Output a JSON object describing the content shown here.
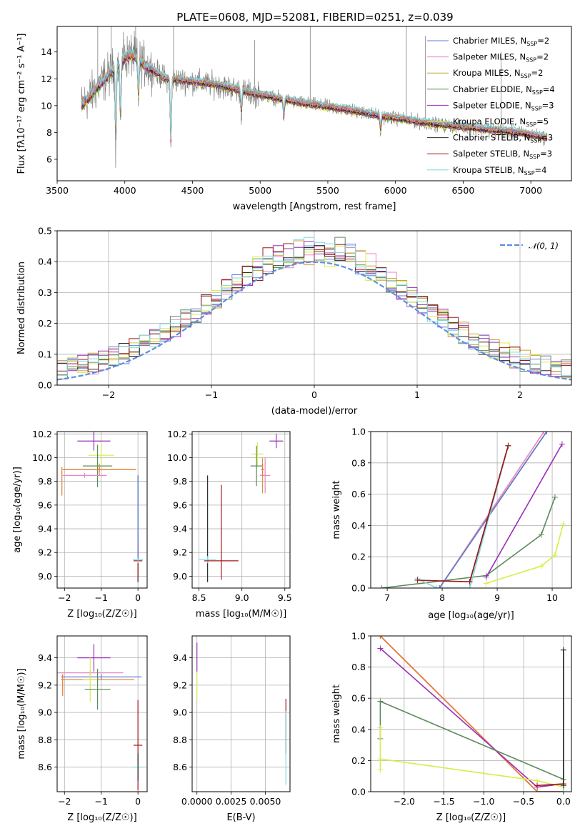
{
  "figure": {
    "title": "PLATE=0608, MJD=52081, FIBERID=0251, z=0.039"
  },
  "colors": {
    "Chabrier MILES": "#5b7fd6",
    "Salpeter MILES": "#e884c6",
    "Kroupa MILES": "#c8a03a",
    "Chabrier ELODIE": "#5c8a5c",
    "Salpeter ELODIE": "#9a30b8",
    "Kroupa ELODIE": "#d8ec4a",
    "Chabrier STELIB": "#2a2a2a",
    "Salpeter STELIB": "#a01818",
    "Kroupa STELIB": "#7fd8dc",
    "data": "#808080",
    "orange": "#e87830"
  },
  "chart_data": [
    {
      "id": "spectrum",
      "type": "line",
      "title": "PLATE=0608, MJD=52081, FIBERID=0251, z=0.039",
      "xlabel": "wavelength [Angstrom, rest frame]",
      "ylabel": "Flux [fλ10⁻¹⁷ erg cm⁻² s⁻¹ A⁻¹]",
      "xlim": [
        3500,
        7300
      ],
      "ylim": [
        4.4,
        15.9
      ],
      "xticks": [
        3500,
        4000,
        4500,
        5000,
        5500,
        6000,
        6500,
        7000
      ],
      "yticks": [
        6,
        8,
        10,
        12,
        14
      ],
      "grid": false,
      "legend_position": "top-right",
      "legend": [
        {
          "label": "Chabrier MILES, N",
          "sub": "SSP",
          "rest": "=2"
        },
        {
          "label": "Salpeter MILES, N",
          "sub": "SSP",
          "rest": "=2"
        },
        {
          "label": "Kroupa MILES, N",
          "sub": "SSP",
          "rest": "=2"
        },
        {
          "label": "Chabrier ELODIE, N",
          "sub": "SSP",
          "rest": "=4"
        },
        {
          "label": "Salpeter ELODIE, N",
          "sub": "SSP",
          "rest": "=3"
        },
        {
          "label": "Kroupa ELODIE, N",
          "sub": "SSP",
          "rest": "=5"
        },
        {
          "label": "Chabrier STELIB, N",
          "sub": "SSP",
          "rest": "=3"
        },
        {
          "label": "Salpeter STELIB, N",
          "sub": "SSP",
          "rest": "=3"
        },
        {
          "label": "Kroupa STELIB, N",
          "sub": "SSP",
          "rest": "=4"
        }
      ],
      "continuum": {
        "x": [
          3680,
          3750,
          3850,
          3950,
          4000,
          4050,
          4150,
          4300,
          4500,
          4700,
          4900,
          5100,
          5300,
          5500,
          5700,
          5900,
          6100,
          6300,
          6500,
          6700,
          6900,
          7120
        ],
        "y": [
          10.0,
          10.8,
          12.0,
          13.0,
          13.6,
          13.8,
          13.0,
          12.0,
          11.8,
          11.5,
          11.0,
          10.6,
          10.2,
          9.9,
          9.6,
          9.2,
          8.9,
          8.6,
          8.4,
          8.2,
          8.0,
          7.6
        ]
      },
      "absorption_lines": [
        {
          "x": 3933,
          "depth": 5.0
        },
        {
          "x": 3968,
          "depth": 4.2
        },
        {
          "x": 4101,
          "depth": 2.5
        },
        {
          "x": 4340,
          "depth": 4.5
        },
        {
          "x": 4861,
          "depth": 1.5
        },
        {
          "x": 5175,
          "depth": 1.2
        },
        {
          "x": 5890,
          "depth": 1.0
        }
      ],
      "spikes": [
        {
          "x": 3800,
          "top": 15.9
        },
        {
          "x": 3900,
          "top": 15.9
        },
        {
          "x": 3990,
          "top": 15.5
        },
        {
          "x": 4080,
          "top": 15.9
        },
        {
          "x": 4360,
          "top": 15.9
        },
        {
          "x": 4960,
          "top": 14.9
        },
        {
          "x": 5370,
          "top": 15.9
        },
        {
          "x": 6080,
          "top": 15.9
        },
        {
          "x": 6220,
          "top": 15.2
        },
        {
          "x": 6780,
          "top": 14.0
        }
      ]
    },
    {
      "id": "residuals",
      "type": "step",
      "xlabel": "(data-model)/error",
      "ylabel": "Normed distribution",
      "xlim": [
        -2.5,
        2.5
      ],
      "ylim": [
        0,
        0.5
      ],
      "xticks": [
        -2,
        -1,
        0,
        1,
        2
      ],
      "xticklabels": [
        "−2",
        "−1",
        "0",
        "1",
        "2"
      ],
      "yticks": [
        0.0,
        0.1,
        0.2,
        0.3,
        0.4,
        0.5
      ],
      "yticklabels": [
        "0.0",
        "0.1",
        "0.2",
        "0.3",
        "0.4",
        "0.5"
      ],
      "grid": true,
      "legend_position": "top-right",
      "gauss_label": "𝒩(0, 1)",
      "gauss_color": "#5b8fe0",
      "bin_width": 0.1
    },
    {
      "id": "z-age",
      "type": "errorbar",
      "xlabel": "Z [log₁₀(Z/Z☉)]",
      "ylabel": "age  [log₁₀(age/yr)]",
      "xlim": [
        -2.2,
        0.25
      ],
      "ylim": [
        8.9,
        10.22
      ],
      "xticks": [
        -2,
        -1,
        0
      ],
      "xticklabels": [
        "−2",
        "−1",
        "0"
      ],
      "yticks": [
        9.0,
        9.2,
        9.4,
        9.6,
        9.8,
        10.0,
        10.2
      ],
      "yticklabels": [
        "9.0",
        "9.2",
        "9.4",
        "9.6",
        "9.8",
        "10.0",
        "10.2"
      ],
      "grid": true,
      "points": [
        {
          "series": "Salpeter ELODIE",
          "x": -1.2,
          "xerr": 0.45,
          "y": 10.14,
          "yerr": 0.08
        },
        {
          "series": "Kroupa ELODIE",
          "x": -1.0,
          "xerr": 0.35,
          "y": 10.02,
          "yerr": 0.1
        },
        {
          "series": "Chabrier ELODIE",
          "x": -1.1,
          "xerr": 0.4,
          "y": 9.93,
          "yerr": 0.18
        },
        {
          "series": "Kroupa MILES",
          "x": -1.05,
          "xerr": 1.0,
          "y": 9.9,
          "yerr": 0.05
        },
        {
          "series": "orange",
          "x": -1.05,
          "xerr": 1.0,
          "y": 9.9,
          "yerr": 0.02
        },
        {
          "series": "Salpeter MILES",
          "x": -1.45,
          "xerr": 0.6,
          "y": 9.85,
          "yerr": 0.02
        },
        {
          "series": "orange",
          "x": -2.07,
          "xerr": 0.0,
          "y": 9.8,
          "yerr": 0.12
        },
        {
          "series": "Chabrier STELIB",
          "x": 0.0,
          "xerr": 0.0,
          "y": 9.4,
          "yerr": 0.45
        },
        {
          "series": "Salpeter STELIB",
          "x": 0.0,
          "xerr": 0.12,
          "y": 9.13,
          "yerr": 0.15
        },
        {
          "series": "Kroupa STELIB",
          "x": 0.0,
          "xerr": 0.14,
          "y": 9.14,
          "yerr": 0.03
        },
        {
          "series": "Chabrier MILES",
          "x": 0.0,
          "xerr": 0.0,
          "y": 9.5,
          "yerr": 0.35
        }
      ]
    },
    {
      "id": "mass-age",
      "type": "errorbar",
      "xlabel": "mass [log₁₀(M/M☉)]",
      "ylabel": "",
      "xlim": [
        8.42,
        9.56
      ],
      "ylim": [
        8.9,
        10.22
      ],
      "xticks": [
        8.5,
        9.0,
        9.5
      ],
      "xticklabels": [
        "8.5",
        "9.0",
        "9.5"
      ],
      "yticks": [
        9.0,
        9.2,
        9.4,
        9.6,
        9.8,
        10.0,
        10.2
      ],
      "yticklabels": [
        "9.0",
        "9.2",
        "9.4",
        "9.6",
        "9.8",
        "10.0",
        "10.2"
      ],
      "grid": true,
      "points": [
        {
          "series": "Salpeter ELODIE",
          "x": 9.4,
          "xerr": 0.08,
          "y": 10.14,
          "yerr": 0.06
        },
        {
          "series": "Kroupa ELODIE",
          "x": 9.18,
          "xerr": 0.07,
          "y": 10.03,
          "yerr": 0.1
        },
        {
          "series": "Chabrier ELODIE",
          "x": 9.17,
          "xerr": 0.07,
          "y": 9.93,
          "yerr": 0.17
        },
        {
          "series": "Kroupa MILES",
          "x": 9.24,
          "xerr": 0.03,
          "y": 9.85,
          "yerr": 0.15
        },
        {
          "series": "Salpeter MILES",
          "x": 9.27,
          "xerr": 0.06,
          "y": 9.85,
          "yerr": 0.15
        },
        {
          "series": "orange",
          "x": 9.24,
          "xerr": 0.02,
          "y": 9.9,
          "yerr": 0.05
        },
        {
          "series": "Chabrier STELIB",
          "x": 8.6,
          "xerr": 0.0,
          "y": 9.4,
          "yerr": 0.45
        },
        {
          "series": "Kroupa STELIB",
          "x": 8.6,
          "xerr": 0.1,
          "y": 9.14,
          "yerr": 0.03
        },
        {
          "series": "Salpeter STELIB",
          "x": 8.76,
          "xerr": 0.2,
          "y": 9.13,
          "yerr": 0.0
        },
        {
          "series": "Salpeter STELIB",
          "x": 8.76,
          "xerr": 0.0,
          "y": 9.37,
          "yerr": 0.4
        }
      ]
    },
    {
      "id": "age-weight",
      "type": "line",
      "xlabel": "age  [log₁₀(age/yr)]",
      "ylabel": "mass weight",
      "xlim": [
        6.7,
        10.35
      ],
      "ylim": [
        0,
        1
      ],
      "xticks": [
        7,
        8,
        9,
        10
      ],
      "xticklabels": [
        "7",
        "8",
        "9",
        "10"
      ],
      "yticks": [
        0.0,
        0.2,
        0.4,
        0.6,
        0.8,
        1.0
      ],
      "yticklabels": [
        "0.0",
        "0.2",
        "0.4",
        "0.6",
        "0.8",
        "1.0"
      ],
      "grid": true,
      "series": [
        {
          "name": "Chabrier ELODIE",
          "x": [
            6.9,
            8.8,
            9.8,
            10.05
          ],
          "y": [
            0.0,
            0.08,
            0.34,
            0.58
          ]
        },
        {
          "name": "Salpeter ELODIE",
          "x": [
            8.8,
            10.18
          ],
          "y": [
            0.07,
            0.92
          ]
        },
        {
          "name": "Kroupa ELODIE",
          "x": [
            8.8,
            9.8,
            10.05,
            10.2
          ],
          "y": [
            0.03,
            0.14,
            0.21,
            0.41
          ]
        },
        {
          "name": "Kroupa MILES",
          "x": [
            7.95,
            9.9
          ],
          "y": [
            0.0,
            1.0
          ]
        },
        {
          "name": "Salpeter MILES",
          "x": [
            7.95,
            9.85
          ],
          "y": [
            0.0,
            1.0
          ]
        },
        {
          "name": "orange",
          "x": [
            7.95,
            9.9
          ],
          "y": [
            0.0,
            1.0
          ]
        },
        {
          "name": "Chabrier MILES",
          "x": [
            7.95,
            9.9
          ],
          "y": [
            0.0,
            1.0
          ]
        },
        {
          "name": "Kroupa STELIB",
          "x": [
            7.55,
            7.9,
            8.5,
            9.2
          ],
          "y": [
            0.06,
            0.0,
            0.0,
            0.91
          ]
        },
        {
          "name": "Chabrier STELIB",
          "x": [
            8.5,
            9.2
          ],
          "y": [
            0.04,
            0.91
          ]
        },
        {
          "name": "Salpeter STELIB",
          "x": [
            7.55,
            8.5,
            9.2
          ],
          "y": [
            0.05,
            0.04,
            0.91
          ]
        }
      ]
    },
    {
      "id": "z-mass",
      "type": "errorbar",
      "xlabel": "Z [log₁₀(Z/Z☉)]",
      "ylabel": "mass [log₁₀(M/M☉)]",
      "xlim": [
        -2.2,
        0.25
      ],
      "ylim": [
        8.42,
        9.56
      ],
      "xticks": [
        -2,
        -1,
        0
      ],
      "xticklabels": [
        "−2",
        "−1",
        "0"
      ],
      "yticks": [
        8.6,
        8.8,
        9.0,
        9.2,
        9.4
      ],
      "yticklabels": [
        "8.6",
        "8.8",
        "9.0",
        "9.2",
        "9.4"
      ],
      "grid": true,
      "points": [
        {
          "series": "Salpeter ELODIE",
          "x": -1.2,
          "xerr": 0.45,
          "y": 9.4,
          "yerr": 0.1
        },
        {
          "series": "Salpeter MILES",
          "x": -1.3,
          "xerr": 0.9,
          "y": 9.29,
          "yerr": 0.02
        },
        {
          "series": "Chabrier MILES",
          "x": -1.0,
          "xerr": 1.1,
          "y": 9.26,
          "yerr": 0.02
        },
        {
          "series": "orange",
          "x": -1.1,
          "xerr": 1.0,
          "y": 9.24,
          "yerr": 0.02
        },
        {
          "series": "Kroupa ELODIE",
          "x": -1.3,
          "xerr": 0.2,
          "y": 9.24,
          "yerr": 0.16
        },
        {
          "series": "Chabrier ELODIE",
          "x": -1.1,
          "xerr": 0.35,
          "y": 9.17,
          "yerr": 0.15
        },
        {
          "series": "orange",
          "x": -2.05,
          "xerr": 0.0,
          "y": 9.2,
          "yerr": 0.08
        },
        {
          "series": "Salpeter STELIB",
          "x": 0.0,
          "xerr": 0.12,
          "y": 8.76,
          "yerr": 0.33
        },
        {
          "series": "Kroupa STELIB",
          "x": 0.0,
          "xerr": 0.14,
          "y": 8.6,
          "yerr": 0.02
        },
        {
          "series": "Chabrier STELIB",
          "x": 0.0,
          "xerr": 0.0,
          "y": 8.6,
          "yerr": 0.1
        }
      ]
    },
    {
      "id": "ebv-mass",
      "type": "errorbar",
      "xlabel": "E(B-V)",
      "ylabel": "",
      "xlim": [
        -0.00035,
        0.0068
      ],
      "ylim": [
        8.42,
        9.56
      ],
      "xticks": [
        0.0,
        0.0025,
        0.005
      ],
      "xticklabels": [
        "0.0000",
        "0.0025",
        "0.0050"
      ],
      "yticks": [
        8.6,
        8.8,
        9.0,
        9.2,
        9.4
      ],
      "yticklabels": [
        "8.6",
        "8.8",
        "9.0",
        "9.2",
        "9.4"
      ],
      "grid": true,
      "points": [
        {
          "series": "Salpeter ELODIE",
          "x": 0.0,
          "xerr": 0.0,
          "y": 9.4,
          "yerr": 0.11
        },
        {
          "series": "Kroupa ELODIE",
          "x": 0.0,
          "xerr": 0.0,
          "y": 9.2,
          "yerr": 0.1
        },
        {
          "series": "Salpeter STELIB",
          "x": 0.0065,
          "xerr": 0.0,
          "y": 8.9,
          "yerr": 0.2
        },
        {
          "series": "Kroupa STELIB",
          "x": 0.0065,
          "xerr": 0.0,
          "y": 8.74,
          "yerr": 0.27
        }
      ]
    },
    {
      "id": "z-weight",
      "type": "line",
      "xlabel": "Z [log₁₀(Z/Z☉)]",
      "ylabel": "mass weight",
      "xlim": [
        -2.42,
        0.1
      ],
      "ylim": [
        0,
        1
      ],
      "xticks": [
        -2.0,
        -1.5,
        -1.0,
        -0.5,
        0.0
      ],
      "xticklabels": [
        "−2.0",
        "−1.5",
        "−1.0",
        "−0.5",
        "0.0"
      ],
      "yticks": [
        0.0,
        0.2,
        0.4,
        0.6,
        0.8,
        1.0
      ],
      "yticklabels": [
        "0.0",
        "0.2",
        "0.4",
        "0.6",
        "0.8",
        "1.0"
      ],
      "grid": true,
      "series": [
        {
          "name": "Kroupa MILES",
          "x": [
            -2.3,
            -0.33,
            0.0
          ],
          "y": [
            1.0,
            0.0,
            0.0
          ]
        },
        {
          "name": "Salpeter MILES",
          "x": [
            -2.3,
            -0.33,
            0.0
          ],
          "y": [
            1.0,
            0.0,
            0.0
          ]
        },
        {
          "name": "orange",
          "x": [
            -2.3,
            -0.33,
            0.0
          ],
          "y": [
            1.0,
            0.0,
            0.0
          ]
        },
        {
          "name": "Salpeter ELODIE",
          "x": [
            -2.3,
            -0.33,
            0.0
          ],
          "y": [
            0.92,
            0.03,
            0.05
          ]
        },
        {
          "name": "Chabrier ELODIE",
          "x": [
            -2.3,
            -2.3,
            0.0,
            0.0
          ],
          "y": [
            0.34,
            0.58,
            0.08,
            0.0
          ]
        },
        {
          "name": "Kroupa ELODIE",
          "x": [
            -2.3,
            -2.3,
            -2.3,
            -0.33,
            0.0
          ],
          "y": [
            0.14,
            0.41,
            0.21,
            0.07,
            0.03
          ]
        },
        {
          "name": "Salpeter STELIB",
          "x": [
            -0.33,
            0.0,
            0.0
          ],
          "y": [
            0.04,
            0.05,
            0.91
          ]
        },
        {
          "name": "Kroupa STELIB",
          "x": [
            0.0,
            0.0
          ],
          "y": [
            0.0,
            0.91
          ]
        },
        {
          "name": "Chabrier STELIB",
          "x": [
            0.0,
            0.0
          ],
          "y": [
            0.04,
            0.91
          ]
        }
      ]
    }
  ]
}
